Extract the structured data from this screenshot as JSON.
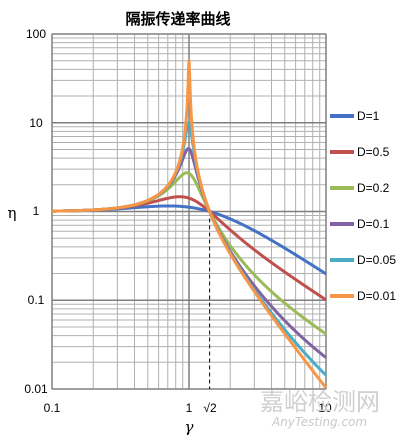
{
  "chart_data": {
    "type": "line",
    "title": "隔振传递率曲线",
    "xlabel": "γ",
    "ylabel": "η",
    "xscale": "log",
    "yscale": "log",
    "xlim": [
      0.1,
      10
    ],
    "ylim": [
      0.01,
      100
    ],
    "x_ticks": [
      "0.1",
      "1",
      "√2",
      "10"
    ],
    "y_ticks": [
      "100",
      "10",
      "1",
      "0.1",
      "0.01"
    ],
    "grid": true,
    "legend_position": "right",
    "series": [
      {
        "name": "D=1",
        "color": "#4472c4",
        "damping": 1,
        "points": [
          [
            0.1,
            1.0
          ],
          [
            0.5,
            1.05
          ],
          [
            0.8,
            1.1
          ],
          [
            1,
            1.12
          ],
          [
            1.414,
            1.0
          ],
          [
            2,
            0.79
          ],
          [
            3,
            0.59
          ],
          [
            5,
            0.39
          ],
          [
            10,
            0.2
          ]
        ]
      },
      {
        "name": "D=0.5",
        "color": "#c0504d",
        "damping": 0.5,
        "points": [
          [
            0.1,
            1.0
          ],
          [
            0.5,
            1.2
          ],
          [
            0.8,
            1.45
          ],
          [
            1,
            1.41
          ],
          [
            1.414,
            1.0
          ],
          [
            2,
            0.6
          ],
          [
            3,
            0.37
          ],
          [
            5,
            0.21
          ],
          [
            10,
            0.1
          ]
        ]
      },
      {
        "name": "D=0.2",
        "color": "#9bbb59",
        "damping": 0.2,
        "points": [
          [
            0.1,
            1.0
          ],
          [
            0.5,
            1.32
          ],
          [
            0.8,
            2.2
          ],
          [
            1,
            2.69
          ],
          [
            1.414,
            1.0
          ],
          [
            2,
            0.42
          ],
          [
            3,
            0.2
          ],
          [
            5,
            0.1
          ],
          [
            10,
            0.042
          ]
        ]
      },
      {
        "name": "D=0.1",
        "color": "#8064a2",
        "damping": 0.1,
        "points": [
          [
            0.1,
            1.0
          ],
          [
            0.5,
            1.33
          ],
          [
            0.8,
            2.6
          ],
          [
            1,
            5.1
          ],
          [
            1.414,
            1.0
          ],
          [
            2,
            0.37
          ],
          [
            3,
            0.15
          ],
          [
            5,
            0.06
          ],
          [
            10,
            0.023
          ]
        ]
      },
      {
        "name": "D=0.05",
        "color": "#4bacc6",
        "damping": 0.05,
        "points": [
          [
            0.1,
            1.0
          ],
          [
            0.5,
            1.33
          ],
          [
            0.8,
            2.75
          ],
          [
            1,
            10.05
          ],
          [
            1.414,
            1.0
          ],
          [
            2,
            0.34
          ],
          [
            3,
            0.13
          ],
          [
            5,
            0.047
          ],
          [
            10,
            0.015
          ]
        ]
      },
      {
        "name": "D=0.01",
        "color": "#f79646",
        "damping": 0.01,
        "points": [
          [
            0.1,
            1.0
          ],
          [
            0.5,
            1.33
          ],
          [
            0.8,
            2.78
          ],
          [
            1,
            50
          ],
          [
            1.414,
            1.0
          ],
          [
            2,
            0.33
          ],
          [
            3,
            0.125
          ],
          [
            5,
            0.042
          ],
          [
            10,
            0.0102
          ]
        ]
      }
    ],
    "reference_line": {
      "x": 1.4142,
      "style": "dashed"
    }
  },
  "watermark": {
    "main": "嘉峪检测网",
    "sub": "AnyTesting.com"
  }
}
